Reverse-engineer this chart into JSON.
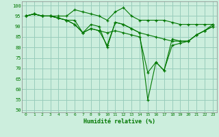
{
  "title": "",
  "xlabel": "Humidité relative (%)",
  "ylabel": "",
  "background_color": "#cceedd",
  "grid_color": "#99ccbb",
  "line_color": "#007700",
  "marker_color": "#007700",
  "xlim": [
    -0.5,
    23.5
  ],
  "ylim": [
    49,
    102
  ],
  "yticks": [
    50,
    55,
    60,
    65,
    70,
    75,
    80,
    85,
    90,
    95,
    100
  ],
  "xtick_labels": [
    "0",
    "1",
    "2",
    "3",
    "4",
    "5",
    "6",
    "7",
    "8",
    "9",
    "10",
    "11",
    "12",
    "13",
    "14",
    "15",
    "16",
    "17",
    "18",
    "19",
    "20",
    "21",
    "22",
    "23"
  ],
  "series": [
    [
      95,
      96,
      95,
      95,
      95,
      95,
      98,
      97,
      96,
      95,
      93,
      97,
      99,
      95,
      93,
      93,
      93,
      93,
      92,
      91,
      91,
      91,
      91,
      91
    ],
    [
      95,
      96,
      95,
      95,
      94,
      93,
      93,
      87,
      91,
      90,
      80,
      92,
      91,
      89,
      87,
      86,
      85,
      84,
      83,
      83,
      83,
      86,
      88,
      91
    ],
    [
      95,
      96,
      95,
      95,
      94,
      93,
      91,
      87,
      89,
      88,
      87,
      88,
      87,
      86,
      85,
      68,
      73,
      69,
      84,
      83,
      83,
      86,
      88,
      90
    ],
    [
      95,
      96,
      95,
      95,
      94,
      93,
      91,
      87,
      89,
      88,
      81,
      92,
      91,
      89,
      87,
      55,
      73,
      69,
      81,
      82,
      83,
      86,
      88,
      90
    ]
  ]
}
